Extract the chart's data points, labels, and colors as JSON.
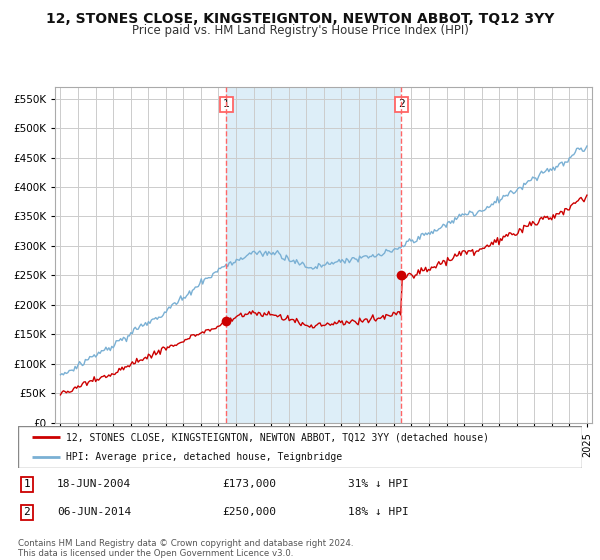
{
  "title": "12, STONES CLOSE, KINGSTEIGNTON, NEWTON ABBOT, TQ12 3YY",
  "subtitle": "Price paid vs. HM Land Registry's House Price Index (HPI)",
  "title_fontsize": 10,
  "subtitle_fontsize": 8.5,
  "bg_color": "#ffffff",
  "grid_color": "#cccccc",
  "plot_bg": "#ffffff",
  "red_color": "#cc0000",
  "blue_color": "#7ab0d4",
  "shade_color": "#ddeef8",
  "dashed_color": "#ff6666",
  "ylim": [
    0,
    570000
  ],
  "yticks": [
    0,
    50000,
    100000,
    150000,
    200000,
    250000,
    300000,
    350000,
    400000,
    450000,
    500000,
    550000
  ],
  "transaction1_date": "18-JUN-2004",
  "transaction1_price": 173000,
  "transaction1_pct": "31% ↓ HPI",
  "transaction2_date": "06-JUN-2014",
  "transaction2_price": 250000,
  "transaction2_pct": "18% ↓ HPI",
  "legend_label_red": "12, STONES CLOSE, KINGSTEIGNTON, NEWTON ABBOT, TQ12 3YY (detached house)",
  "legend_label_blue": "HPI: Average price, detached house, Teignbridge",
  "footer1": "Contains HM Land Registry data © Crown copyright and database right 2024.",
  "footer2": "This data is licensed under the Open Government Licence v3.0.",
  "marker1_x": 2004.46,
  "marker1_y": 173000,
  "marker2_x": 2014.43,
  "marker2_y": 250000,
  "xlim_left": 1994.7,
  "xlim_right": 2025.3
}
